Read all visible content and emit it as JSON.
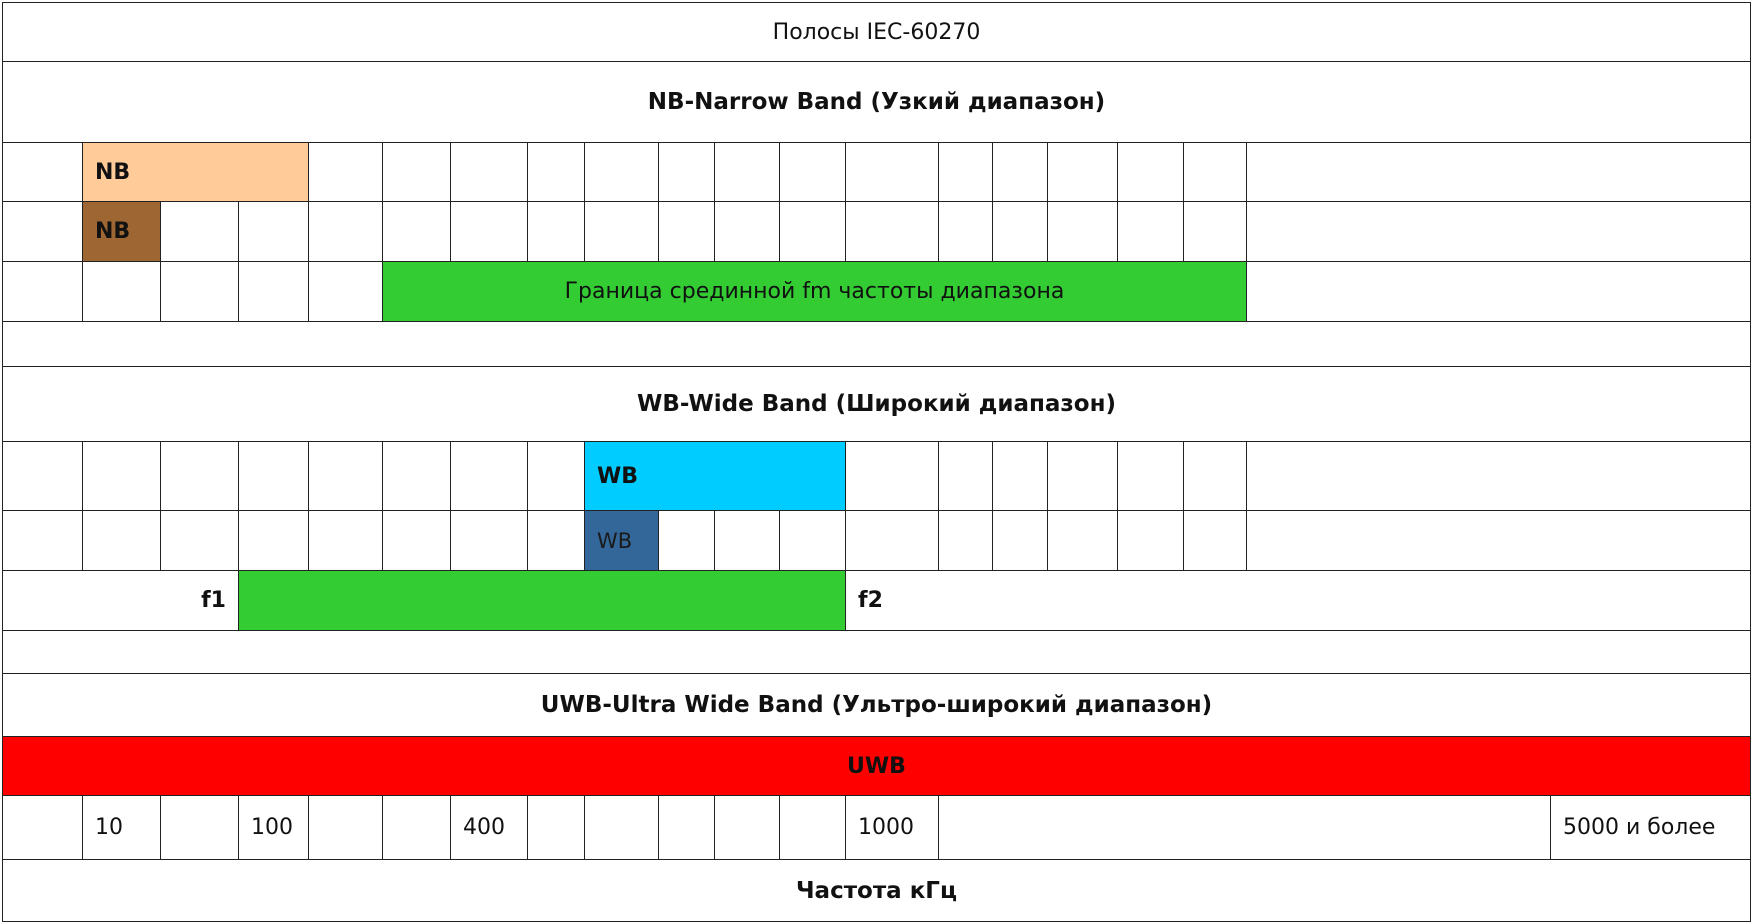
{
  "title": "Полосы IEC-60270",
  "nb": {
    "header": "NB-Narrow Band (Узкий диапазон)",
    "bar1_label": "NB",
    "bar2_label": "NB",
    "range_label": "Граница срединной fm частоты  диапазона"
  },
  "wb": {
    "header": "WB-Wide Band (Широкий диапазон)",
    "bar1_label": "WB",
    "bar2_label": "WB",
    "f1_label": "f1",
    "f2_label": "f2"
  },
  "uwb": {
    "header": "UWB-Ultra Wide Band (Ультро-широкий диапазон)",
    "bar_label": "UWB"
  },
  "axis": {
    "ticks": [
      "10",
      "100",
      "400",
      "1000",
      "5000 и более"
    ],
    "label": "Частота кГц"
  },
  "colors": {
    "nb_light": "#ffcc99",
    "nb_dark": "#9e6633",
    "green": "#33cc33",
    "wb_light": "#00ccff",
    "wb_dark": "#336699",
    "uwb": "#ff0000"
  }
}
